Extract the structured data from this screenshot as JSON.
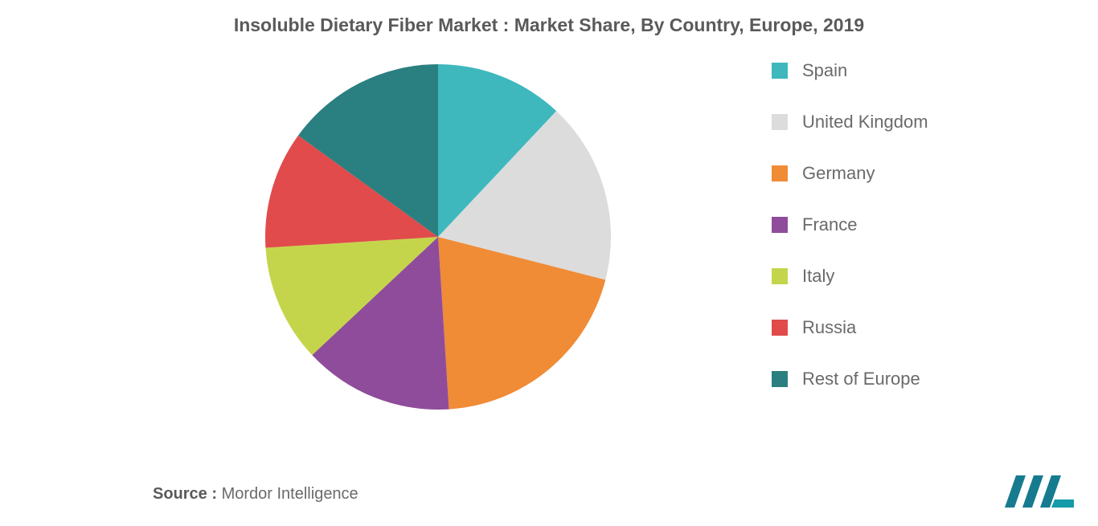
{
  "chart": {
    "type": "pie",
    "title": "Insoluble Dietary Fiber Market : Market Share, By Country, Europe, 2019",
    "title_fontsize": 23,
    "title_color": "#5a5a5a",
    "background_color": "#ffffff",
    "pie_radius": 210,
    "start_angle_deg": -90,
    "slices": [
      {
        "label": "Spain",
        "value": 12,
        "color": "#3eb8bd"
      },
      {
        "label": "United Kingdom",
        "value": 17,
        "color": "#dcdcdc"
      },
      {
        "label": "Germany",
        "value": 20,
        "color": "#f08b36"
      },
      {
        "label": "France",
        "value": 14,
        "color": "#8f4c9b"
      },
      {
        "label": "Italy",
        "value": 11,
        "color": "#c5d54b"
      },
      {
        "label": "Russia",
        "value": 11,
        "color": "#e14b4b"
      },
      {
        "label": "Rest of Europe",
        "value": 15,
        "color": "#2a7f80"
      }
    ],
    "legend": {
      "font_size": 22,
      "text_color": "#6a6a6a",
      "swatch_size": 20,
      "gap": 38
    }
  },
  "source": {
    "label": "Source :",
    "value": "Mordor Intelligence",
    "font_size": 20
  },
  "logo": {
    "text": "MI",
    "bar_color": "#177b8f",
    "accent_color": "#177b8f"
  }
}
